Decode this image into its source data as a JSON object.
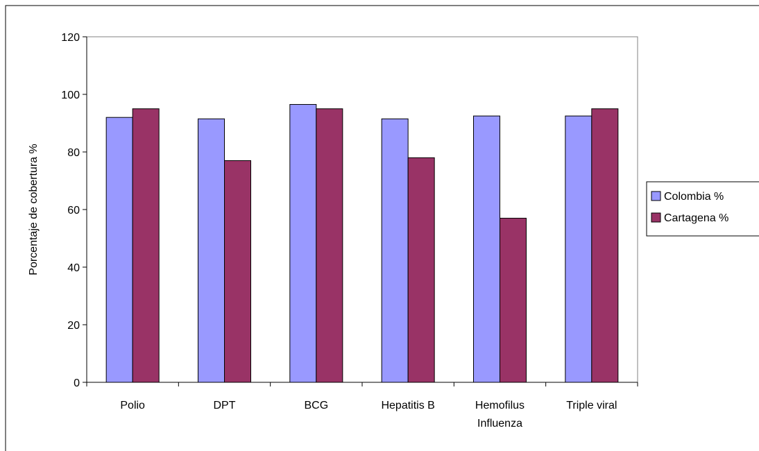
{
  "chart_data": {
    "type": "bar",
    "title": "",
    "xlabel": "",
    "ylabel": "Porcentaje de cobertura %",
    "categories": [
      [
        "Polio"
      ],
      [
        "DPT"
      ],
      [
        "BCG"
      ],
      [
        "Hepatitis B"
      ],
      [
        "Hemofilus",
        "Influenza"
      ],
      [
        "Triple viral"
      ]
    ],
    "series": [
      {
        "name": "Colombia %",
        "color": "#9999ff",
        "values": [
          92,
          91.5,
          96.5,
          91.5,
          92.5,
          92.5
        ]
      },
      {
        "name": "Cartagena %",
        "color": "#993366",
        "values": [
          95,
          77,
          95,
          78,
          57,
          95
        ]
      }
    ],
    "ylim": [
      0,
      120
    ],
    "yticks": [
      0,
      20,
      40,
      60,
      80,
      100,
      120
    ],
    "grid": false,
    "legend": "right"
  }
}
